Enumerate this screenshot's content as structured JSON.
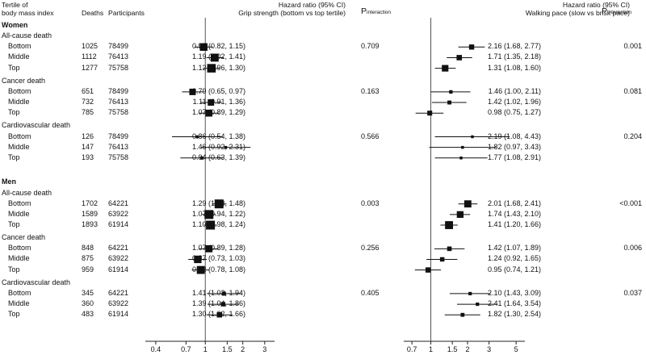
{
  "headers": {
    "subgroup_line1": "Tertile of",
    "subgroup_line2": "body mass index",
    "deaths": "Deaths",
    "participants": "Participants",
    "panel_left_line1": "Hazard ratio (95% CI)",
    "panel_left_line2": "Grip strength (bottom vs top tertile)",
    "panel_right_line1": "Hazard ratio (95% CI)",
    "panel_right_line2": "Walking pace (slow vs brisk pace)",
    "p_interaction_main": "P",
    "p_interaction_sub": "interaction"
  },
  "chart_data": {
    "type": "forest",
    "x_scale": "log",
    "reference_line": 1,
    "panels": [
      {
        "name": "grip",
        "title": "Grip strength (bottom vs top tertile)",
        "xlabel": "Hazard ratio (95% CI)",
        "xlim": [
          0.33,
          3.6
        ],
        "ticks": [
          0.4,
          0.7,
          1,
          1.5,
          2,
          3
        ],
        "tick_labels": [
          "0.4",
          "0.7",
          "1",
          "1.5",
          "2",
          "3"
        ]
      },
      {
        "name": "walk",
        "title": "Walking pace (slow vs brisk pace)",
        "xlabel": "Hazard ratio (95% CI)",
        "xlim": [
          0.6,
          5.9
        ],
        "ticks": [
          0.7,
          1,
          1.5,
          2,
          3,
          5
        ],
        "tick_labels": [
          "0.7",
          "1",
          "1.5",
          "2",
          "3",
          "5"
        ]
      }
    ],
    "sexes": [
      {
        "label": "Women",
        "outcomes": [
          {
            "label": "All-cause death",
            "p_grip": "0.709",
            "p_walk": "0.001",
            "rows": [
              {
                "tertile": "Bottom",
                "deaths": "1025",
                "participants": "78499",
                "grip": {
                  "hr": 0.97,
                  "lo": 0.82,
                  "hi": 1.15,
                  "text": "0.97 (0.82, 1.15)"
                },
                "walk": {
                  "hr": 2.16,
                  "lo": 1.68,
                  "hi": 2.77,
                  "text": "2.16 (1.68, 2.77)"
                }
              },
              {
                "tertile": "Middle",
                "deaths": "1112",
                "participants": "76413",
                "grip": {
                  "hr": 1.19,
                  "lo": 1.02,
                  "hi": 1.41,
                  "text": "1.19 (1.02, 1.41)"
                },
                "walk": {
                  "hr": 1.71,
                  "lo": 1.35,
                  "hi": 2.18,
                  "text": "1.71 (1.35, 2.18)"
                }
              },
              {
                "tertile": "Top",
                "deaths": "1277",
                "participants": "75758",
                "grip": {
                  "hr": 1.12,
                  "lo": 0.96,
                  "hi": 1.3,
                  "text": "1.12 (0.96, 1.30)"
                },
                "walk": {
                  "hr": 1.31,
                  "lo": 1.08,
                  "hi": 1.6,
                  "text": "1.31 (1.08, 1.60)"
                }
              }
            ]
          },
          {
            "label": "Cancer death",
            "p_grip": "0.163",
            "p_walk": "0.081",
            "rows": [
              {
                "tertile": "Bottom",
                "deaths": "651",
                "participants": "78499",
                "grip": {
                  "hr": 0.79,
                  "lo": 0.65,
                  "hi": 0.97,
                  "text": "0.79 (0.65, 0.97)"
                },
                "walk": {
                  "hr": 1.46,
                  "lo": 1.0,
                  "hi": 2.11,
                  "text": "1.46 (1.00, 2.11)"
                }
              },
              {
                "tertile": "Middle",
                "deaths": "732",
                "participants": "76413",
                "grip": {
                  "hr": 1.11,
                  "lo": 0.91,
                  "hi": 1.36,
                  "text": "1.11 (0.91, 1.36)"
                },
                "walk": {
                  "hr": 1.42,
                  "lo": 1.02,
                  "hi": 1.96,
                  "text": "1.42 (1.02, 1.96)"
                }
              },
              {
                "tertile": "Top",
                "deaths": "785",
                "participants": "75758",
                "grip": {
                  "hr": 1.07,
                  "lo": 0.89,
                  "hi": 1.29,
                  "text": "1.07 (0.89, 1.29)"
                },
                "walk": {
                  "hr": 0.98,
                  "lo": 0.75,
                  "hi": 1.27,
                  "text": "0.98 (0.75, 1.27)"
                }
              }
            ]
          },
          {
            "label": "Cardiovascular death",
            "p_grip": "0.566",
            "p_walk": "0.204",
            "rows": [
              {
                "tertile": "Bottom",
                "deaths": "126",
                "participants": "78499",
                "grip": {
                  "hr": 0.86,
                  "lo": 0.54,
                  "hi": 1.38,
                  "text": "0.86 (0.54, 1.38)"
                },
                "walk": {
                  "hr": 2.19,
                  "lo": 1.08,
                  "hi": 4.43,
                  "text": "2.19 (1.08, 4.43)"
                }
              },
              {
                "tertile": "Middle",
                "deaths": "147",
                "participants": "76413",
                "grip": {
                  "hr": 1.46,
                  "lo": 0.92,
                  "hi": 2.31,
                  "text": "1.46 (0.92, 2.31)"
                },
                "walk": {
                  "hr": 1.82,
                  "lo": 0.97,
                  "hi": 3.43,
                  "text": "1.82 (0.97, 3.43)"
                }
              },
              {
                "tertile": "Top",
                "deaths": "193",
                "participants": "75758",
                "grip": {
                  "hr": 0.94,
                  "lo": 0.63,
                  "hi": 1.39,
                  "text": "0.94 (0.63, 1.39)"
                },
                "walk": {
                  "hr": 1.77,
                  "lo": 1.08,
                  "hi": 2.91,
                  "text": "1.77 (1.08, 2.91)"
                }
              }
            ]
          }
        ]
      },
      {
        "label": "Men",
        "outcomes": [
          {
            "label": "All-cause death",
            "p_grip": "0.003",
            "p_walk": "<0.001",
            "rows": [
              {
                "tertile": "Bottom",
                "deaths": "1702",
                "participants": "64221",
                "grip": {
                  "hr": 1.29,
                  "lo": 1.13,
                  "hi": 1.48,
                  "text": "1.29 (1.13, 1.48)"
                },
                "walk": {
                  "hr": 2.01,
                  "lo": 1.68,
                  "hi": 2.41,
                  "text": "2.01 (1.68, 2.41)"
                }
              },
              {
                "tertile": "Middle",
                "deaths": "1589",
                "participants": "63922",
                "grip": {
                  "hr": 1.07,
                  "lo": 0.94,
                  "hi": 1.22,
                  "text": "1.07 (0.94, 1.22)"
                },
                "walk": {
                  "hr": 1.74,
                  "lo": 1.43,
                  "hi": 2.1,
                  "text": "1.74 (1.43, 2.10)"
                }
              },
              {
                "tertile": "Top",
                "deaths": "1893",
                "participants": "61914",
                "grip": {
                  "hr": 1.1,
                  "lo": 0.98,
                  "hi": 1.24,
                  "text": "1.10 (0.98, 1.24)"
                },
                "walk": {
                  "hr": 1.41,
                  "lo": 1.2,
                  "hi": 1.66,
                  "text": "1.41 (1.20, 1.66)"
                }
              }
            ]
          },
          {
            "label": "Cancer death",
            "p_grip": "0.256",
            "p_walk": "0.006",
            "rows": [
              {
                "tertile": "Bottom",
                "deaths": "848",
                "participants": "64221",
                "grip": {
                  "hr": 1.07,
                  "lo": 0.89,
                  "hi": 1.28,
                  "text": "1.07 (0.89, 1.28)"
                },
                "walk": {
                  "hr": 1.42,
                  "lo": 1.07,
                  "hi": 1.89,
                  "text": "1.42 (1.07, 1.89)"
                }
              },
              {
                "tertile": "Middle",
                "deaths": "875",
                "participants": "63922",
                "grip": {
                  "hr": 0.87,
                  "lo": 0.73,
                  "hi": 1.03,
                  "text": "0.87 (0.73, 1.03)"
                },
                "walk": {
                  "hr": 1.24,
                  "lo": 0.92,
                  "hi": 1.65,
                  "text": "1.24 (0.92, 1.65)"
                }
              },
              {
                "tertile": "Top",
                "deaths": "959",
                "participants": "61914",
                "grip": {
                  "hr": 0.92,
                  "lo": 0.78,
                  "hi": 1.08,
                  "text": "0.92 (0.78, 1.08)"
                },
                "walk": {
                  "hr": 0.95,
                  "lo": 0.74,
                  "hi": 1.21,
                  "text": "0.95 (0.74, 1.21)"
                }
              }
            ]
          },
          {
            "label": "Cardiovascular death",
            "p_grip": "0.405",
            "p_walk": "0.037",
            "rows": [
              {
                "tertile": "Bottom",
                "deaths": "345",
                "participants": "64221",
                "grip": {
                  "hr": 1.41,
                  "lo": 1.03,
                  "hi": 1.94,
                  "text": "1.41 (1.03, 1.94)"
                },
                "walk": {
                  "hr": 2.1,
                  "lo": 1.43,
                  "hi": 3.09,
                  "text": "2.10 (1.43, 3.09)"
                }
              },
              {
                "tertile": "Middle",
                "deaths": "360",
                "participants": "63922",
                "grip": {
                  "hr": 1.39,
                  "lo": 1.04,
                  "hi": 1.86,
                  "text": "1.39 (1.04, 1.86)"
                },
                "walk": {
                  "hr": 2.41,
                  "lo": 1.64,
                  "hi": 3.54,
                  "text": "2.41 (1.64, 3.54)"
                }
              },
              {
                "tertile": "Top",
                "deaths": "483",
                "participants": "61914",
                "grip": {
                  "hr": 1.3,
                  "lo": 1.02,
                  "hi": 1.66,
                  "text": "1.30 (1.02, 1.66)"
                },
                "walk": {
                  "hr": 1.82,
                  "lo": 1.3,
                  "hi": 2.54,
                  "text": "1.82 (1.30, 2.54)"
                }
              }
            ]
          }
        ]
      }
    ]
  }
}
